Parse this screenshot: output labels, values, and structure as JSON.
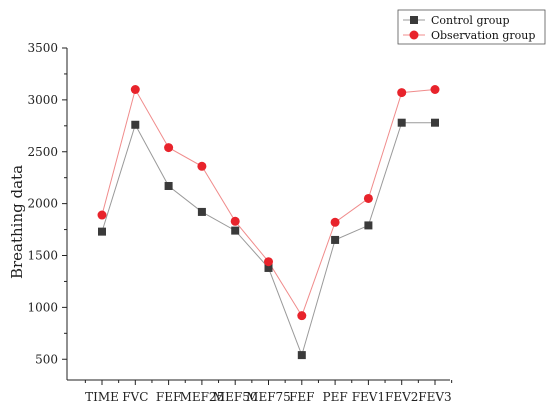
{
  "chart_data": {
    "type": "line",
    "ylabel": "Breathing data",
    "xlabel": "",
    "ylim": [
      300,
      3500
    ],
    "yticks": [
      500,
      1000,
      1500,
      2000,
      2500,
      3000,
      3500
    ],
    "categories": [
      "TIME",
      "FVC",
      "FEF",
      "MEF25",
      "MEF50",
      "MEF75",
      "FEF",
      "PEF",
      "FEV1",
      "FEV2",
      "FEV3"
    ],
    "series": [
      {
        "name": "Control group",
        "marker": "square",
        "color": "#3a3a3a",
        "line_color": "#9a9a9a",
        "values": [
          1730,
          2760,
          2170,
          1920,
          1740,
          1380,
          540,
          1650,
          1790,
          2780,
          2780
        ]
      },
      {
        "name": "Observation group",
        "marker": "circle",
        "color": "#e8232b",
        "line_color": "#f08c8c",
        "values": [
          1890,
          3100,
          2540,
          2360,
          1830,
          1440,
          920,
          1820,
          2050,
          3070,
          3100
        ]
      }
    ],
    "grid": false,
    "legend_position": "top-right"
  }
}
